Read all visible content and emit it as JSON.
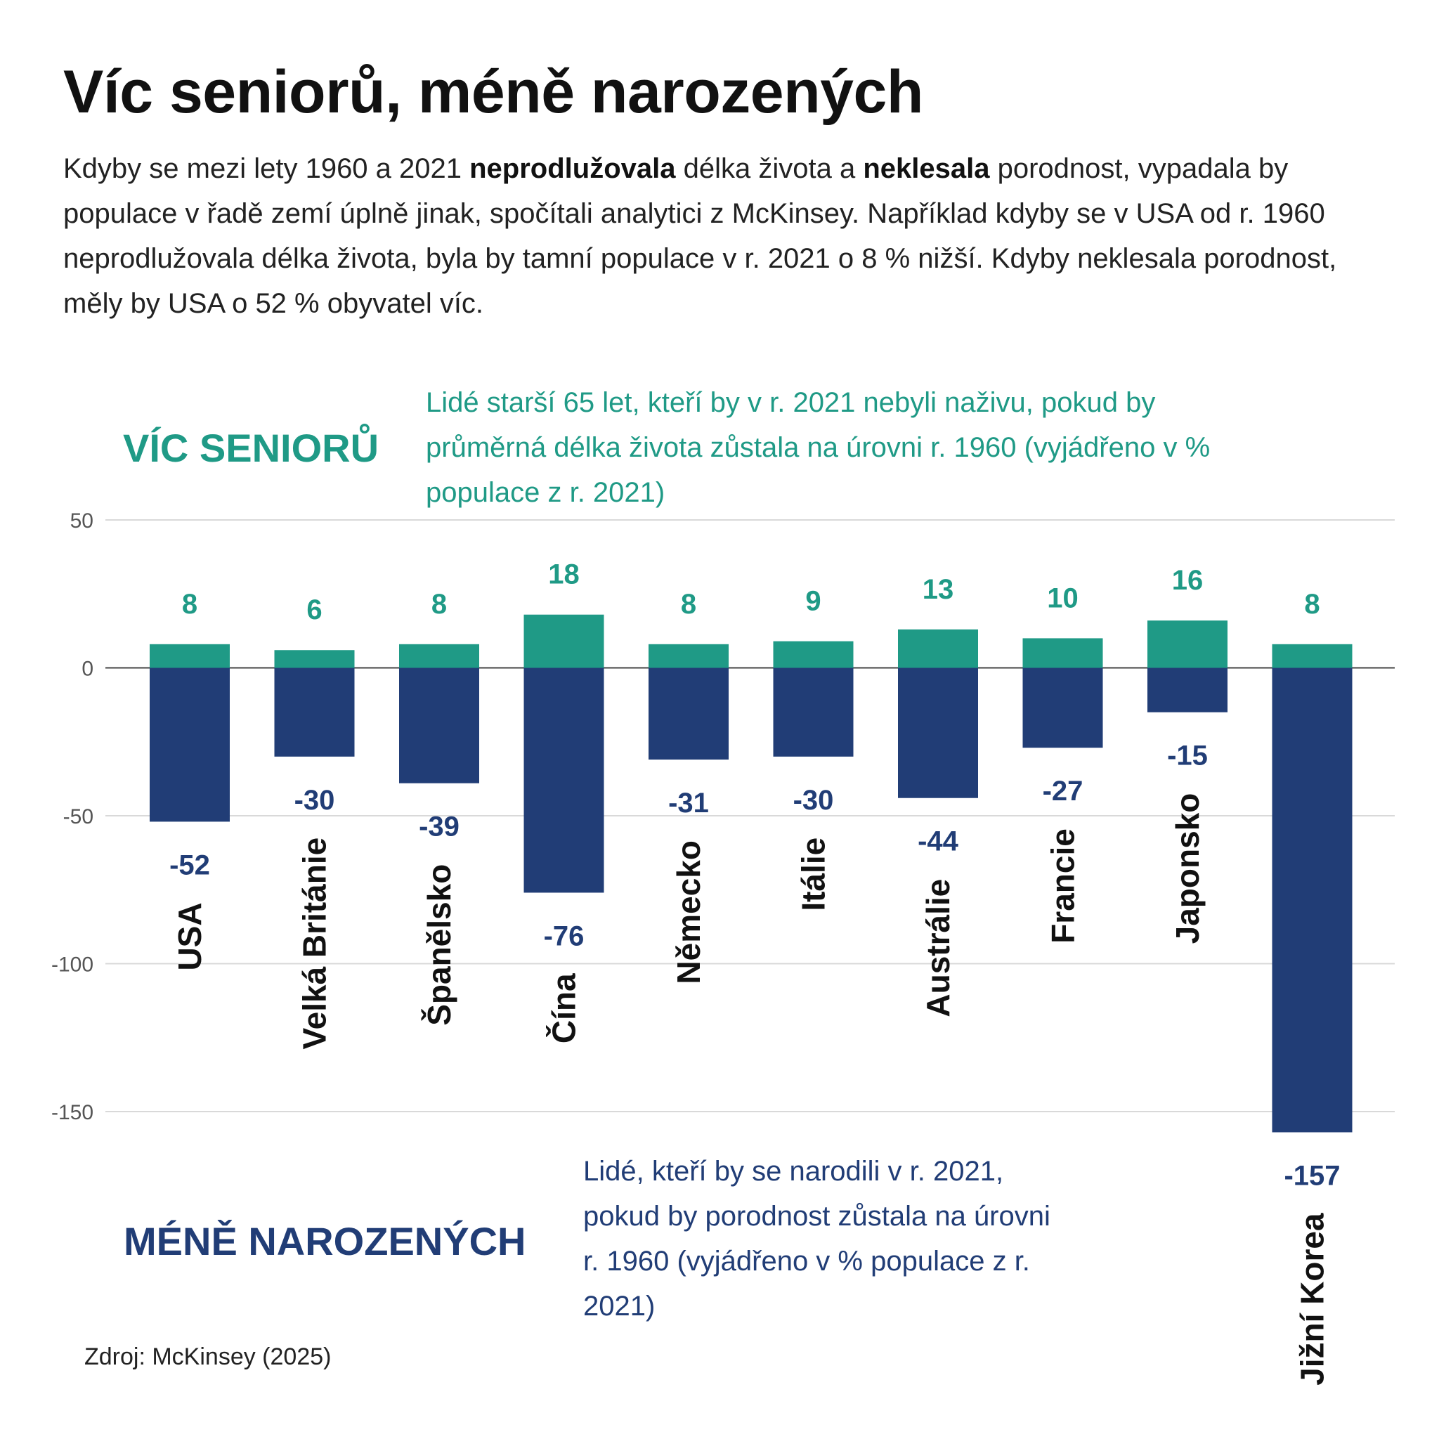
{
  "title": "Víc seniorů, méně narozených",
  "subtitle": {
    "t1": "Kdyby se mezi lety 1960 a 2021 ",
    "b1": "neprodlužovala",
    "t2": " délka života a ",
    "b2": "neklesala",
    "t3": " porodnost, vypadala by populace v řadě zemí úplně jinak, spočítali analytici z McKinsey. Například kdyby se v USA od r. 1960 neprodlužovala délka života, byla by tamní populace v r. 2021 o 8 % nižší. Kdyby neklesala porodnost, měly by USA o 52 % obyvatel víc."
  },
  "legend": {
    "seniors_heading": "VÍC SENIORŮ",
    "seniors_note_lines": [
      "Lidé starší 65 let, kteří by v r. 2021 nebyli naživu, pokud by",
      "průměrná délka života zůstala na úrovni r. 1960 (vyjádřeno v %",
      "populace z r. 2021)"
    ],
    "births_heading": "MÉNĚ NAROZENÝCH",
    "births_note_lines": [
      "Lidé, kteří by se narodili v r. 2021,",
      "pokud by porodnost zůstala na úrovni",
      "r. 1960 (vyjádřeno v % populace z r.",
      "2021)"
    ]
  },
  "source": "Zdroj: McKinsey (2025)",
  "colors": {
    "seniors": "#1f9a86",
    "births": "#213d76",
    "grid": "#d9d9d9",
    "axis_text": "#555555"
  },
  "chart_data": {
    "type": "bar",
    "categories": [
      "USA",
      "Velká Británie",
      "Španělsko",
      "Čína",
      "Německo",
      "Itálie",
      "Austrálie",
      "Francie",
      "Japonsko",
      "Jižní Korea"
    ],
    "series": [
      {
        "name": "VÍC SENIORŮ",
        "values": [
          8,
          6,
          8,
          18,
          8,
          9,
          13,
          10,
          16,
          8
        ]
      },
      {
        "name": "MÉNĚ NAROZENÝCH",
        "values": [
          -52,
          -30,
          -39,
          -76,
          -31,
          -30,
          -44,
          -27,
          -15,
          -157
        ]
      }
    ],
    "y_ticks": [
      "50",
      "0",
      "-50",
      "-100",
      "-150"
    ],
    "ylim": [
      -150,
      50
    ],
    "grid": true
  }
}
